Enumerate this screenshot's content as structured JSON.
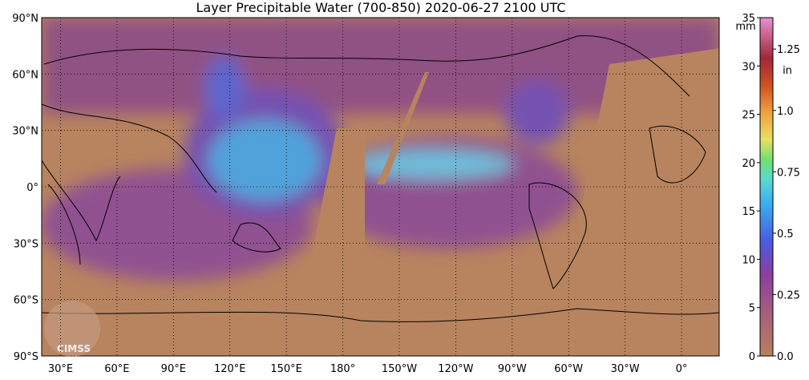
{
  "title": "Layer Precipitable Water (700-850)  2020-06-27 2100 UTC",
  "map": {
    "lonlim": [
      20,
      380
    ],
    "latlim": [
      -90,
      90
    ],
    "lat_ticks": [
      {
        "value": 90,
        "label": "90°N"
      },
      {
        "value": 60,
        "label": "60°N"
      },
      {
        "value": 30,
        "label": "30°N"
      },
      {
        "value": 0,
        "label": "0°"
      },
      {
        "value": -30,
        "label": "30°S"
      },
      {
        "value": -60,
        "label": "60°S"
      },
      {
        "value": -90,
        "label": "90°S"
      }
    ],
    "lon_ticks": [
      {
        "value": 30,
        "label": "30°E"
      },
      {
        "value": 60,
        "label": "60°E"
      },
      {
        "value": 90,
        "label": "90°E"
      },
      {
        "value": 120,
        "label": "120°E"
      },
      {
        "value": 150,
        "label": "150°E"
      },
      {
        "value": 180,
        "label": "180°"
      },
      {
        "value": 210,
        "label": "150°W"
      },
      {
        "value": 240,
        "label": "120°W"
      },
      {
        "value": 270,
        "label": "90°W"
      },
      {
        "value": 300,
        "label": "60°W"
      },
      {
        "value": 330,
        "label": "30°W"
      },
      {
        "value": 360,
        "label": "0°"
      }
    ],
    "logo": "CIMSS"
  },
  "colorbar": {
    "mm_unit": "mm",
    "mm_lim": [
      0,
      35
    ],
    "mm_ticks": [
      0,
      5,
      10,
      15,
      20,
      25,
      30,
      35
    ],
    "in_unit": "in",
    "in_lim": [
      0,
      1.378
    ],
    "in_ticks": [
      {
        "value": 0,
        "label": "0.0"
      },
      0.25,
      0.5,
      0.75,
      {
        "value": 1,
        "label": "1.0"
      },
      1.25
    ]
  }
}
